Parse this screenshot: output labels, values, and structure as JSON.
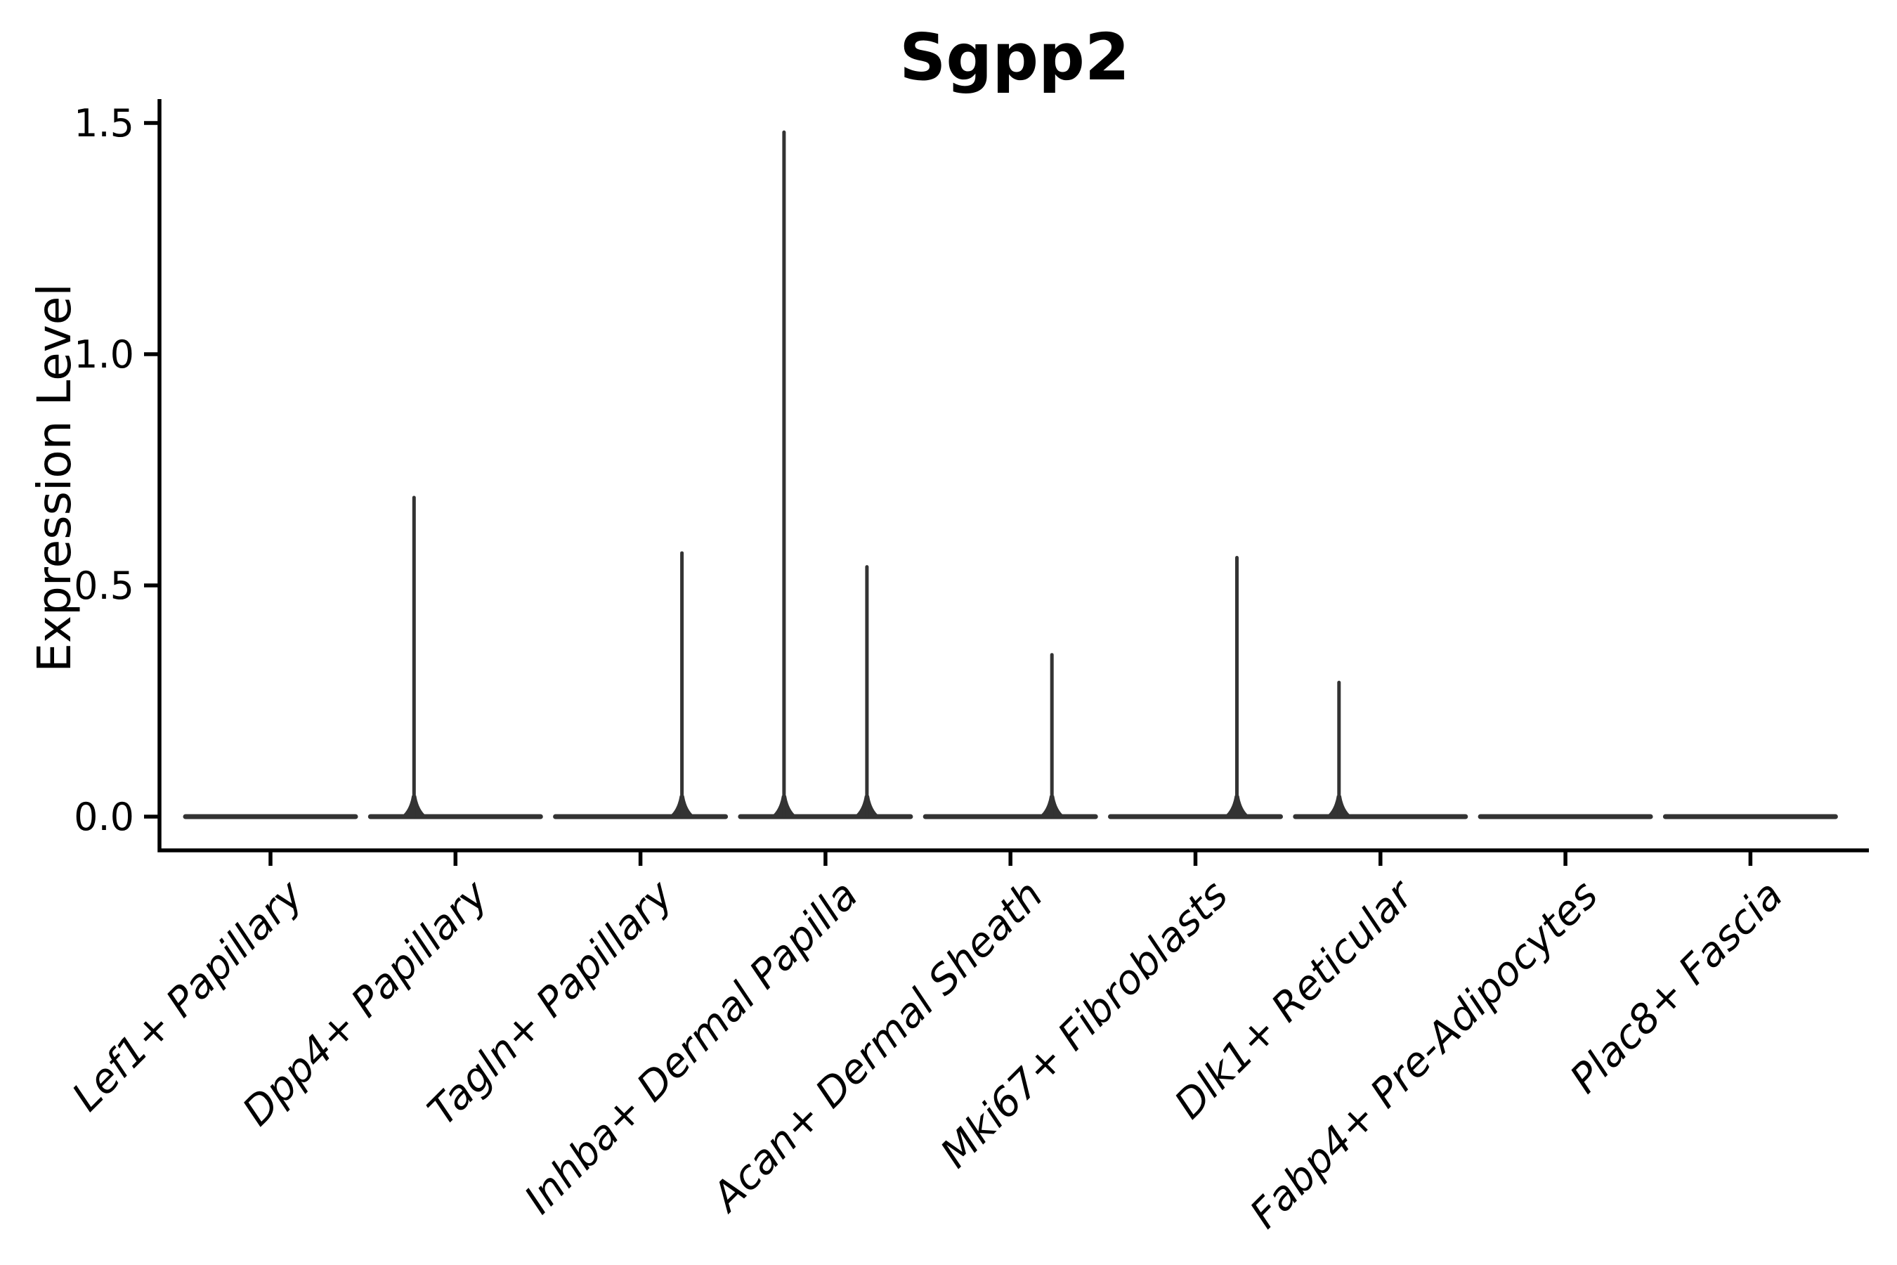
{
  "chart_data": {
    "type": "violin",
    "title": "Sgpp2",
    "ylabel": "Expression Level",
    "xlabel": "",
    "ylim": [
      -0.07,
      1.55
    ],
    "yticks": [
      0.0,
      0.5,
      1.0,
      1.5
    ],
    "ytick_labels": [
      "0.0",
      "0.5",
      "1.0",
      "1.5"
    ],
    "grid": "off",
    "legend": "none",
    "categories": [
      "Lef1+ Papillary",
      "Dpp4+ Papillary",
      "Tagln+ Papillary",
      "Inhba+ Dermal Papilla",
      "Acan+ Dermal Sheath",
      "Mki67+ Fibroblasts",
      "Dlk1+ Reticular",
      "Fabp4+ Pre-Adipocytes",
      "Plac8+ Fascia"
    ],
    "violins": [
      {
        "category": "Lef1+ Papillary",
        "base_value": 0.0,
        "spikes": []
      },
      {
        "category": "Dpp4+ Papillary",
        "base_value": 0.0,
        "spikes": [
          {
            "side": "left",
            "peak": 0.69
          }
        ]
      },
      {
        "category": "Tagln+ Papillary",
        "base_value": 0.0,
        "spikes": [
          {
            "side": "right",
            "peak": 0.57
          }
        ]
      },
      {
        "category": "Inhba+ Dermal Papilla",
        "base_value": 0.0,
        "spikes": [
          {
            "side": "left",
            "peak": 1.48
          },
          {
            "side": "right",
            "peak": 0.54
          }
        ]
      },
      {
        "category": "Acan+ Dermal Sheath",
        "base_value": 0.0,
        "spikes": [
          {
            "side": "right",
            "peak": 0.35
          }
        ]
      },
      {
        "category": "Mki67+ Fibroblasts",
        "base_value": 0.0,
        "spikes": [
          {
            "side": "right",
            "peak": 0.56
          }
        ]
      },
      {
        "category": "Dlk1+ Reticular",
        "base_value": 0.0,
        "spikes": [
          {
            "side": "left",
            "peak": 0.29
          }
        ]
      },
      {
        "category": "Fabp4+ Pre-Adipocytes",
        "base_value": 0.0,
        "spikes": []
      },
      {
        "category": "Plac8+ Fascia",
        "base_value": 0.0,
        "spikes": []
      }
    ],
    "colors": {
      "violin_stroke": "#333333",
      "axis": "#000000",
      "text": "#000000",
      "background": "#ffffff"
    }
  }
}
